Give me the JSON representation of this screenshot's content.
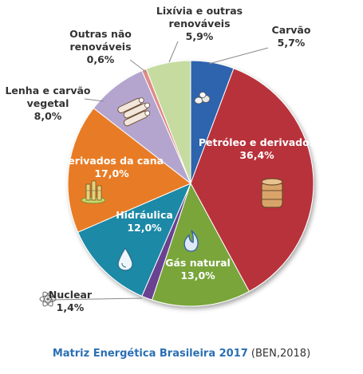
{
  "chart_data": {
    "type": "pie",
    "title": "",
    "slices": [
      {
        "label": [
          "Carvão"
        ],
        "value": "5,7%",
        "pct": 5.7,
        "color": "#2e63ad"
      },
      {
        "label": [
          "Petróleo e derivados"
        ],
        "value": "36,4%",
        "pct": 36.4,
        "color": "#b8323a"
      },
      {
        "label": [
          "Gás natural"
        ],
        "value": "13,0%",
        "pct": 13.0,
        "color": "#79a53a"
      },
      {
        "label": [
          "Nuclear"
        ],
        "value": "1,4%",
        "pct": 1.4,
        "color": "#6a4292"
      },
      {
        "label": [
          "Hidráulica"
        ],
        "value": "12,0%",
        "pct": 12.0,
        "color": "#1d89a6"
      },
      {
        "label": [
          "Derivados da cana"
        ],
        "value": "17,0%",
        "pct": 17.0,
        "color": "#e87c26"
      },
      {
        "label": [
          "Lenha e carvão",
          "vegetal"
        ],
        "value": "8,0%",
        "pct": 8.0,
        "color": "#b4a5cf"
      },
      {
        "label": [
          "Outras não",
          "renováveis"
        ],
        "value": "0,6%",
        "pct": 0.6,
        "color": "#e08a86"
      },
      {
        "label": [
          "Lixívia e outras",
          "renováveis"
        ],
        "value": "5,9%",
        "pct": 5.9,
        "color": "#c6dba0"
      }
    ]
  },
  "caption": {
    "title": "Matriz Energética Brasileira 2017",
    "source": " (BEN,2018)"
  }
}
